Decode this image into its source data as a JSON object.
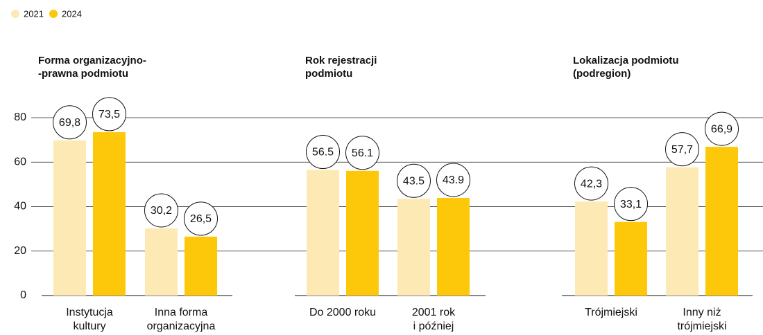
{
  "chart_data": {
    "type": "bar",
    "groups": [
      "Forma organizacyjno-\n-prawna podmiotu",
      "Rok rejestracji\npodmiotu",
      "Lokalizacja podmiotu\n(podregion)"
    ],
    "categories": [
      "Instytucja\nkultury",
      "Inna forma\norganizacyjna",
      "Do 2000 roku",
      "2001 rok\ni później",
      "Trójmiejski",
      "Inny niż\ntrójmiejski"
    ],
    "series": [
      {
        "name": "2021",
        "color": "#fde9b4",
        "values": [
          69.8,
          30.2,
          56.5,
          43.5,
          42.3,
          57.7
        ],
        "value_labels": [
          "69,8",
          "30,2",
          "56.5",
          "43.5",
          "42,3",
          "57,7"
        ]
      },
      {
        "name": "2024",
        "color": "#fec80a",
        "values": [
          73.5,
          26.5,
          56.1,
          43.9,
          33.1,
          66.9
        ],
        "value_labels": [
          "73,5",
          "26,5",
          "56.1",
          "43.9",
          "33,1",
          "66,9"
        ]
      }
    ],
    "ylim": [
      0,
      80
    ],
    "yticks": [
      0,
      20,
      40,
      60,
      80
    ],
    "grid": true,
    "legend": "top-left"
  }
}
